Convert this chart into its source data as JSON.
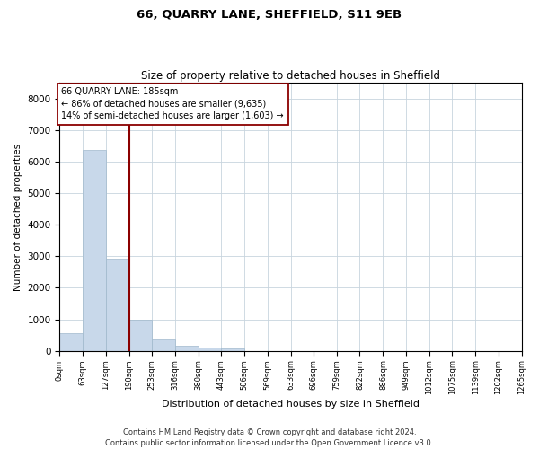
{
  "title1": "66, QUARRY LANE, SHEFFIELD, S11 9EB",
  "title2": "Size of property relative to detached houses in Sheffield",
  "xlabel": "Distribution of detached houses by size in Sheffield",
  "ylabel": "Number of detached properties",
  "bar_color": "#c8d8ea",
  "bar_edge_color": "#a0b8cc",
  "gridcolor": "#c8d4de",
  "property_line_x": 190,
  "annotation_label": "66 QUARRY LANE: 185sqm",
  "annotation_line2": "← 86% of detached houses are smaller (9,635)",
  "annotation_line3": "14% of semi-detached houses are larger (1,603) →",
  "footer1": "Contains HM Land Registry data © Crown copyright and database right 2024.",
  "footer2": "Contains public sector information licensed under the Open Government Licence v3.0.",
  "bin_edges": [
    0,
    63,
    127,
    190,
    253,
    316,
    380,
    443,
    506,
    569,
    633,
    696,
    759,
    822,
    886,
    949,
    1012,
    1075,
    1139,
    1202,
    1265
  ],
  "bin_labels": [
    "0sqm",
    "63sqm",
    "127sqm",
    "190sqm",
    "253sqm",
    "316sqm",
    "380sqm",
    "443sqm",
    "506sqm",
    "569sqm",
    "633sqm",
    "696sqm",
    "759sqm",
    "822sqm",
    "886sqm",
    "949sqm",
    "1012sqm",
    "1075sqm",
    "1139sqm",
    "1202sqm",
    "1265sqm"
  ],
  "bar_heights": [
    570,
    6380,
    2920,
    990,
    360,
    175,
    110,
    70,
    0,
    0,
    0,
    0,
    0,
    0,
    0,
    0,
    0,
    0,
    0,
    0
  ],
  "ylim": [
    0,
    8500
  ],
  "yticks": [
    0,
    1000,
    2000,
    3000,
    4000,
    5000,
    6000,
    7000,
    8000
  ]
}
